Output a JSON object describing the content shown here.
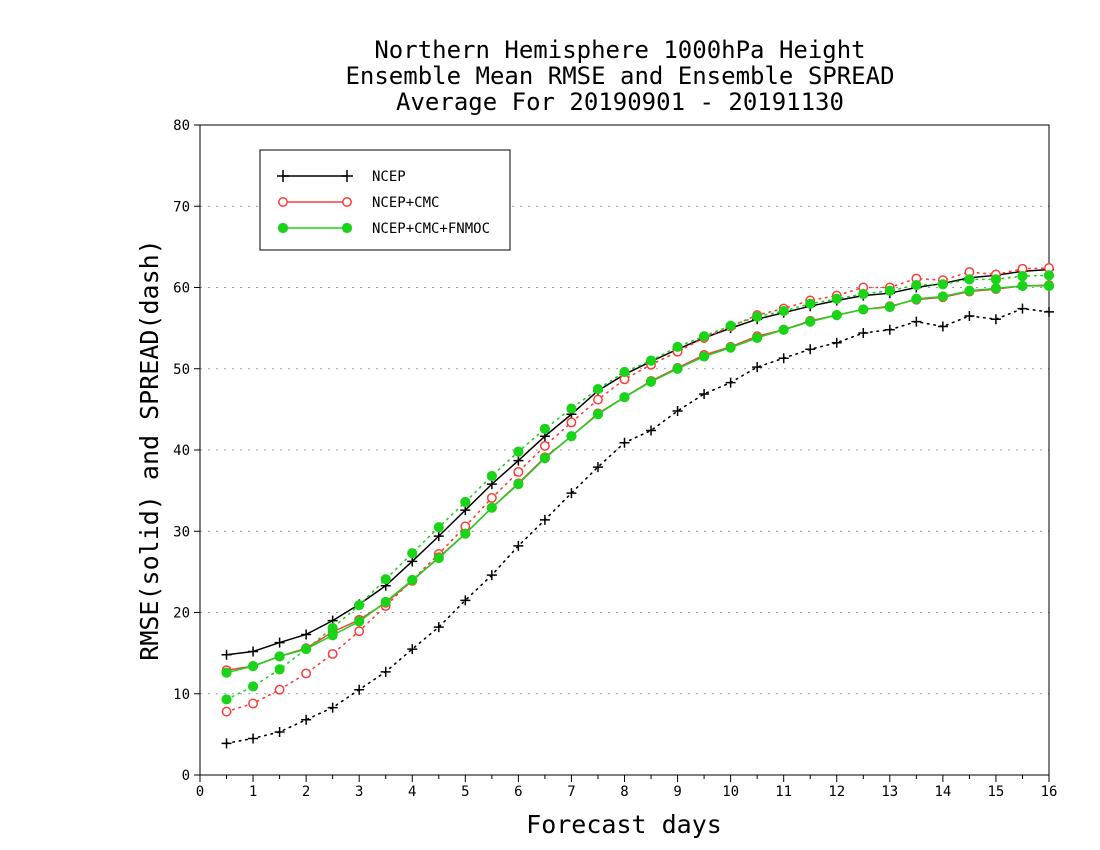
{
  "chart_data": {
    "type": "line",
    "title_lines": [
      "Northern Hemisphere 1000hPa Height",
      "Ensemble Mean RMSE and Ensemble SPREAD",
      "Average For 20190901 - 20191130"
    ],
    "xlabel": "Forecast days",
    "ylabel": "RMSE(solid) and SPREAD(dash)",
    "xlim": [
      0,
      16
    ],
    "ylim": [
      0,
      80
    ],
    "xticks": [
      "0",
      "1",
      "2",
      "3",
      "4",
      "5",
      "6",
      "7",
      "8",
      "9",
      "10",
      "11",
      "12",
      "13",
      "14",
      "15",
      "16"
    ],
    "yticks": [
      "0",
      "10",
      "20",
      "30",
      "40",
      "50",
      "60",
      "70",
      "80"
    ],
    "grid": true,
    "legend_position": "top-left",
    "x": [
      0.5,
      1,
      1.5,
      2,
      2.5,
      3,
      3.5,
      4,
      4.5,
      5,
      5.5,
      6,
      6.5,
      7,
      7.5,
      8,
      8.5,
      9,
      9.5,
      10,
      10.5,
      11,
      11.5,
      12,
      12.5,
      13,
      13.5,
      14,
      14.5,
      15,
      15.5,
      16
    ],
    "series": [
      {
        "name": "NCEP",
        "color": "#000000",
        "marker": "plus",
        "rmse": [
          14.8,
          15.2,
          16.3,
          17.3,
          19.0,
          21.0,
          23.3,
          26.3,
          29.4,
          32.6,
          35.8,
          38.7,
          41.7,
          44.4,
          47.3,
          49.3,
          50.9,
          52.4,
          53.8,
          55.0,
          56.1,
          56.9,
          57.7,
          58.4,
          59.0,
          59.3,
          60.0,
          60.5,
          61.2,
          61.5,
          62.0,
          62.2
        ],
        "spread": [
          3.9,
          4.5,
          5.3,
          6.8,
          8.3,
          10.5,
          12.7,
          15.5,
          18.2,
          21.5,
          24.6,
          28.2,
          31.4,
          34.7,
          37.9,
          40.9,
          42.4,
          44.8,
          46.9,
          48.3,
          50.2,
          51.3,
          52.4,
          53.2,
          54.4,
          54.8,
          55.8,
          55.2,
          56.5,
          56.1,
          57.4,
          57.0
        ]
      },
      {
        "name": "NCEP+CMC",
        "color": "#ff3b3b",
        "marker": "open-circle",
        "rmse": [
          12.9,
          13.4,
          14.6,
          15.6,
          17.6,
          19.1,
          21.2,
          23.9,
          26.8,
          29.7,
          32.9,
          35.9,
          39.1,
          41.7,
          44.5,
          46.5,
          48.5,
          50.1,
          51.7,
          52.7,
          54.0,
          54.8,
          55.9,
          56.6,
          57.3,
          57.7,
          58.5,
          58.8,
          59.5,
          59.8,
          60.2,
          60.3
        ],
        "spread": [
          7.8,
          8.8,
          10.5,
          12.5,
          14.9,
          17.7,
          20.8,
          24.0,
          27.2,
          30.6,
          34.1,
          37.3,
          40.5,
          43.4,
          46.2,
          48.7,
          50.5,
          52.1,
          53.8,
          55.2,
          56.6,
          57.4,
          58.4,
          59.0,
          60.0,
          60.0,
          61.1,
          60.9,
          61.9,
          61.6,
          62.3,
          62.4
        ]
      },
      {
        "name": "NCEP+CMC+FNMOC",
        "color": "#19d419",
        "marker": "filled-circle",
        "rmse": [
          12.6,
          13.4,
          14.6,
          15.5,
          17.2,
          18.9,
          21.3,
          24.0,
          26.7,
          29.7,
          32.9,
          35.8,
          39.0,
          41.7,
          44.4,
          46.5,
          48.4,
          50.0,
          51.5,
          52.6,
          53.8,
          54.8,
          55.8,
          56.6,
          57.3,
          57.6,
          58.6,
          58.9,
          59.6,
          59.9,
          60.2,
          60.2
        ],
        "spread": [
          9.3,
          10.9,
          13.0,
          15.5,
          18.1,
          20.9,
          24.1,
          27.3,
          30.5,
          33.6,
          36.8,
          39.8,
          42.6,
          45.1,
          47.5,
          49.6,
          51.0,
          52.7,
          54.0,
          55.3,
          56.4,
          57.1,
          58.0,
          58.6,
          59.2,
          59.6,
          60.3,
          60.4,
          61.0,
          61.0,
          61.4,
          61.5
        ]
      }
    ]
  }
}
